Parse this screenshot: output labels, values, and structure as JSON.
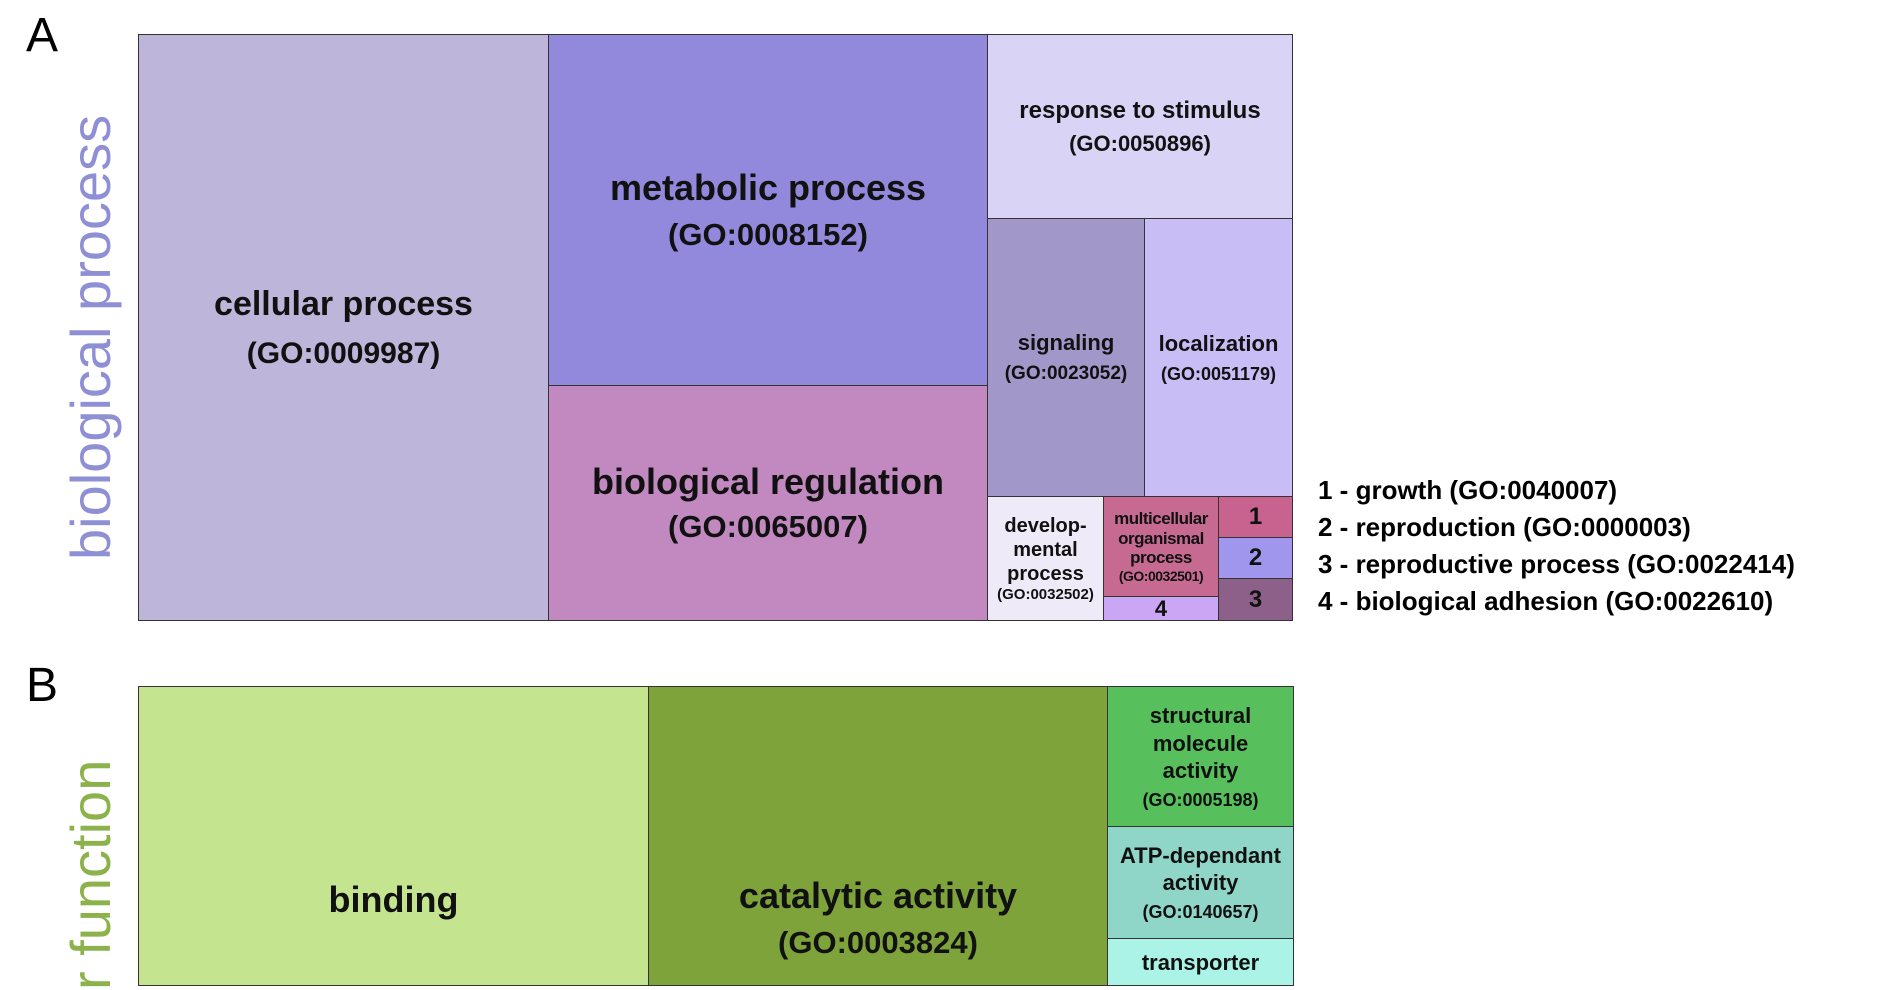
{
  "panelA": {
    "letter": "A",
    "side_label": "biological process",
    "side_label_color": "#8f8fd6",
    "tiles": {
      "cellular": {
        "name": "cellular process",
        "id": "(GO:0009987)",
        "color": "#bdb6da"
      },
      "metabolic": {
        "name": "metabolic process",
        "id": "(GO:0008152)",
        "color": "#9289dc"
      },
      "regulation": {
        "name": "biological regulation",
        "id": "(GO:0065007)",
        "color": "#c289c1"
      },
      "stimulus": {
        "name": "response to stimulus",
        "id": "(GO:0050896)",
        "color": "#d9d3f6"
      },
      "signaling": {
        "name": "signaling",
        "id": "(GO:0023052)",
        "color": "#a297c9"
      },
      "localization": {
        "name": "localization",
        "id": "(GO:0051179)",
        "color": "#c8bdf5"
      },
      "developmental": {
        "line1": "develop-",
        "line2": "mental",
        "line3": "process",
        "id": "(GO:0032502)",
        "color": "#eeeaf8"
      },
      "multicellular": {
        "line1": "multicellular",
        "line2": "organismal",
        "line3": "process",
        "id": "(GO:0032501)",
        "color": "#c76a92"
      },
      "small": [
        {
          "label": "1",
          "color": "#c7638e"
        },
        {
          "label": "2",
          "color": "#a096ee"
        },
        {
          "label": "3",
          "color": "#8c6089"
        },
        {
          "label": "4",
          "color": "#cba6f4"
        }
      ]
    },
    "legend": [
      "1 - growth (GO:0040007)",
      "2 - reproduction (GO:0000003)",
      "3 - reproductive process (GO:0022414)",
      "4 - biological adhesion (GO:0022610)"
    ]
  },
  "panelB": {
    "letter": "B",
    "side_label": "r function",
    "side_label_color": "#8bb24b",
    "tiles": {
      "binding": {
        "name": "binding",
        "color": "#c5e48f"
      },
      "catalytic": {
        "name": "catalytic activity",
        "id": "(GO:0003824)",
        "color": "#7ea33b"
      },
      "structural": {
        "line1": "structural",
        "line2": "molecule",
        "line3": "activity",
        "id": "(GO:0005198)",
        "color": "#57c05d"
      },
      "atp": {
        "line1": "ATP-dependant",
        "line2": "activity",
        "id": "(GO:0140657)",
        "color": "#8fd6c8"
      },
      "transporter": {
        "name": "transporter",
        "color": "#aaf3e6"
      }
    }
  }
}
